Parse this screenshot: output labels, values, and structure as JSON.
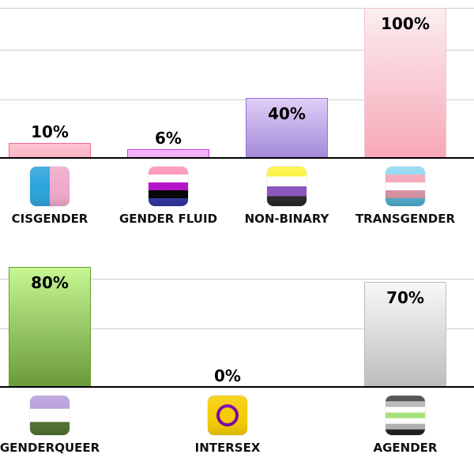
{
  "chart_data": [
    {
      "type": "bar",
      "categories": [
        "CISGENDER",
        "GENDER FLUID",
        "NON-BINARY",
        "TRANSGENDER"
      ],
      "values": [
        10,
        6,
        40,
        100
      ],
      "data_labels": [
        "10%",
        "6%",
        "40%",
        "100%"
      ],
      "ylim": [
        0,
        100
      ],
      "grid": true,
      "bar_colors": [
        [
          "#ffc6d2",
          "#f9b5c4",
          "#f06b8e"
        ],
        [
          "#f4b7f8",
          "#f0adf7",
          "#c23fd6"
        ],
        [
          "#e0cdf7",
          "#a38ad8",
          "#9b6fd8"
        ],
        [
          "#fbeef0",
          "#f7a8b8",
          "#f3c4cc"
        ]
      ],
      "icons": [
        "cisgender-flag-icon",
        "genderfluid-flag-icon",
        "nonbinary-flag-icon",
        "transgender-flag-icon"
      ]
    },
    {
      "type": "bar",
      "categories": [
        "GENDERQUEER",
        "INTERSEX",
        "AGENDER"
      ],
      "values": [
        80,
        0,
        70
      ],
      "data_labels": [
        "80%",
        "0%",
        "70%"
      ],
      "ylim": [
        0,
        100
      ],
      "grid": true,
      "bar_colors": [
        [
          "#c6f792",
          "#6a9a3a",
          "#6a9a3a"
        ],
        [
          "#ffffff",
          "#ffffff",
          "#ffffff"
        ],
        [
          "#f8f8f8",
          "#bdbdbd",
          "#bcbcbc"
        ]
      ],
      "icons": [
        "genderqueer-flag-icon",
        "intersex-flag-icon",
        "agender-flag-icon"
      ]
    }
  ]
}
